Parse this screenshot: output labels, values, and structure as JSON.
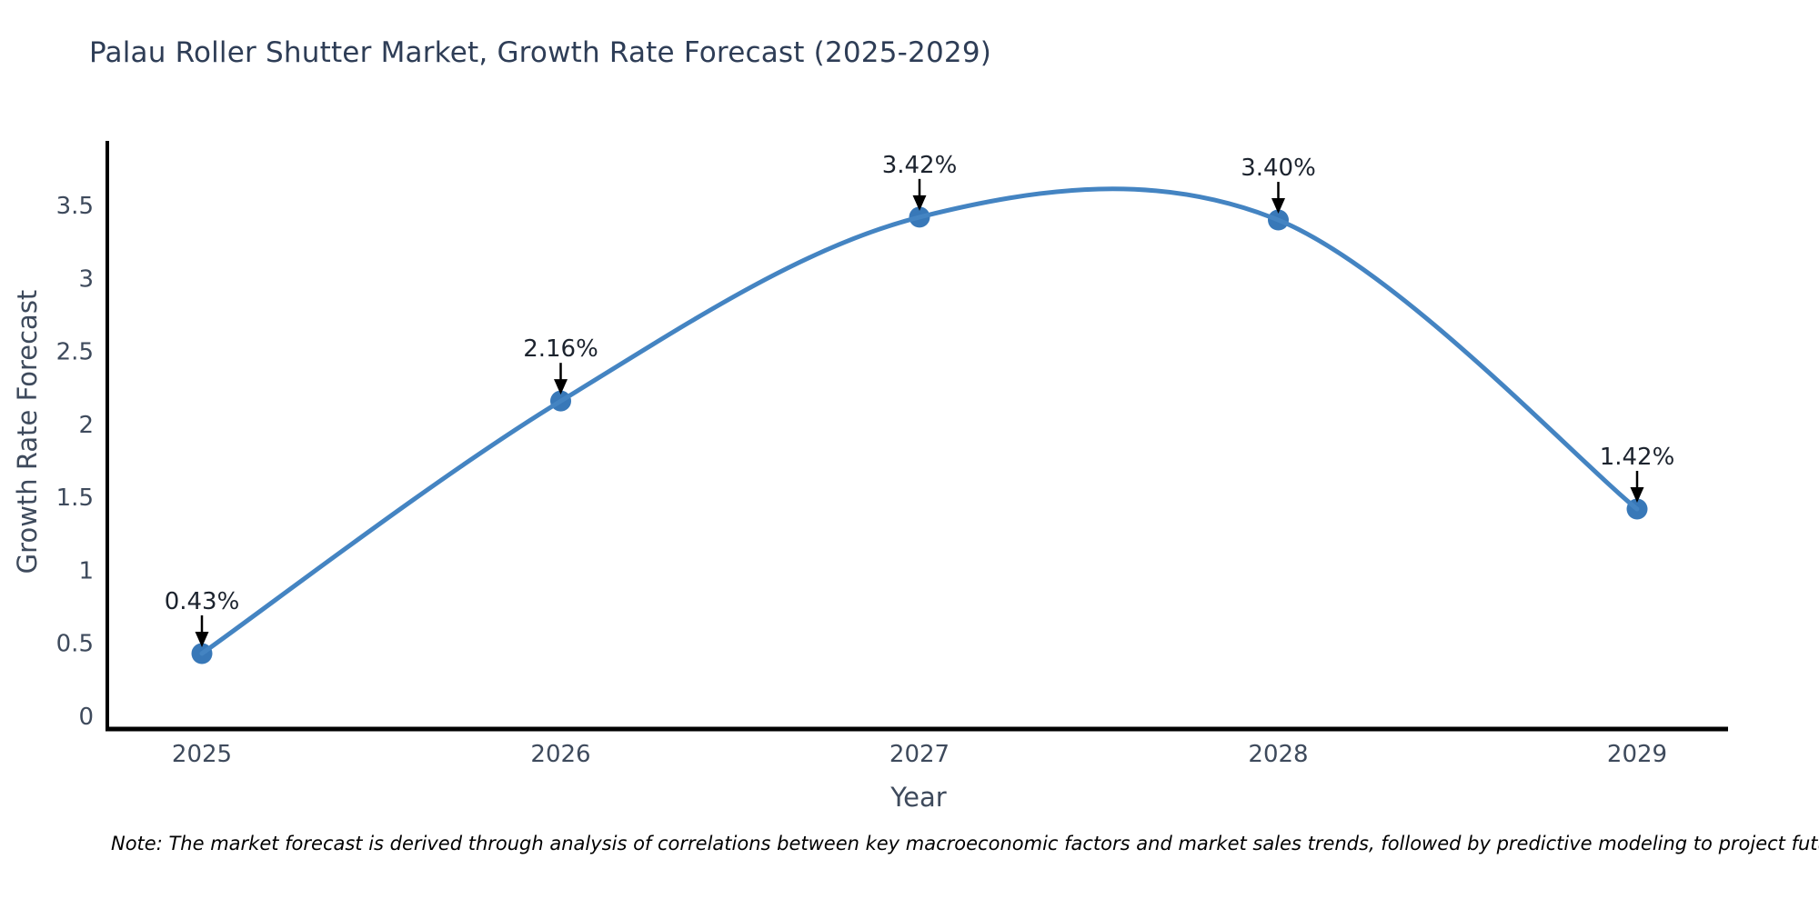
{
  "chart": {
    "title": "Palau Roller Shutter Market, Growth Rate Forecast (2025-2029)"
  },
  "chart_data": {
    "type": "line",
    "title": "Palau Roller Shutter Market, Growth Rate Forecast (2025-2029)",
    "x": [
      2025,
      2026,
      2027,
      2028,
      2029
    ],
    "xtick_labels": [
      "2025",
      "2026",
      "2027",
      "2028",
      "2029"
    ],
    "series": [
      {
        "name": "Growth Rate Forecast",
        "values": [
          0.43,
          2.16,
          3.42,
          3.4,
          1.42
        ]
      }
    ],
    "point_labels": [
      "0.43%",
      "2.16%",
      "3.42%",
      "3.40%",
      "1.42%"
    ],
    "xlabel": "Year",
    "ylabel": "Growth Rate Forecast",
    "ylim": [
      0,
      3.94
    ],
    "yticks": [
      0,
      0.5,
      1,
      1.5,
      2,
      2.5,
      3,
      3.5
    ],
    "ytick_labels": [
      "0",
      "0.5",
      "1",
      "1.5",
      "2",
      "2.5",
      "3",
      "3.5"
    ],
    "grid": false,
    "legend": "none",
    "line_style": "smooth-spline",
    "annotation_style": "value-label-with-down-arrow",
    "colors": {
      "line": "#4484c2",
      "marker": "#3878b8",
      "axis": "#000000",
      "tick_text": "#3e4a5c",
      "title_text": "#2e3d56",
      "annotation_text": "#1c232e",
      "arrow": "#000000",
      "background": "#ffffff"
    }
  },
  "note": {
    "text": "Note: The market forecast is derived through analysis of correlations between key macroeconomic factors and market sales trends, followed by predictive modeling to project future sales"
  }
}
